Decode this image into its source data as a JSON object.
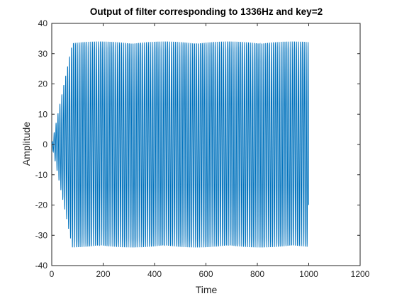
{
  "chart_data": {
    "type": "line",
    "title": "Output of filter corresponding to 1336Hz and key=2",
    "xlabel": "Time",
    "ylabel": "Amplitude",
    "xlim": [
      0,
      1200
    ],
    "ylim": [
      -40,
      40
    ],
    "xticks": [
      0,
      200,
      400,
      600,
      800,
      1000,
      1200
    ],
    "yticks": [
      -40,
      -30,
      -20,
      -10,
      0,
      10,
      20,
      30,
      40
    ],
    "xtick_labels": [
      "0",
      "200",
      "400",
      "600",
      "800",
      "1000",
      "1200"
    ],
    "ytick_labels": [
      "-40",
      "-30",
      "-20",
      "-10",
      "0",
      "10",
      "20",
      "30",
      "40"
    ],
    "grid": false,
    "legend": "none",
    "series": [
      {
        "color": "#0072BD",
        "signal": {
          "form": "damped-onset sinusoid",
          "x_start": 0,
          "x_end": 1000,
          "cycles_per_unit_x": 0.1336,
          "steady_amplitude": 34,
          "start_amplitude": 0,
          "envelope_ramp_end_x": 80
        }
      }
    ]
  }
}
